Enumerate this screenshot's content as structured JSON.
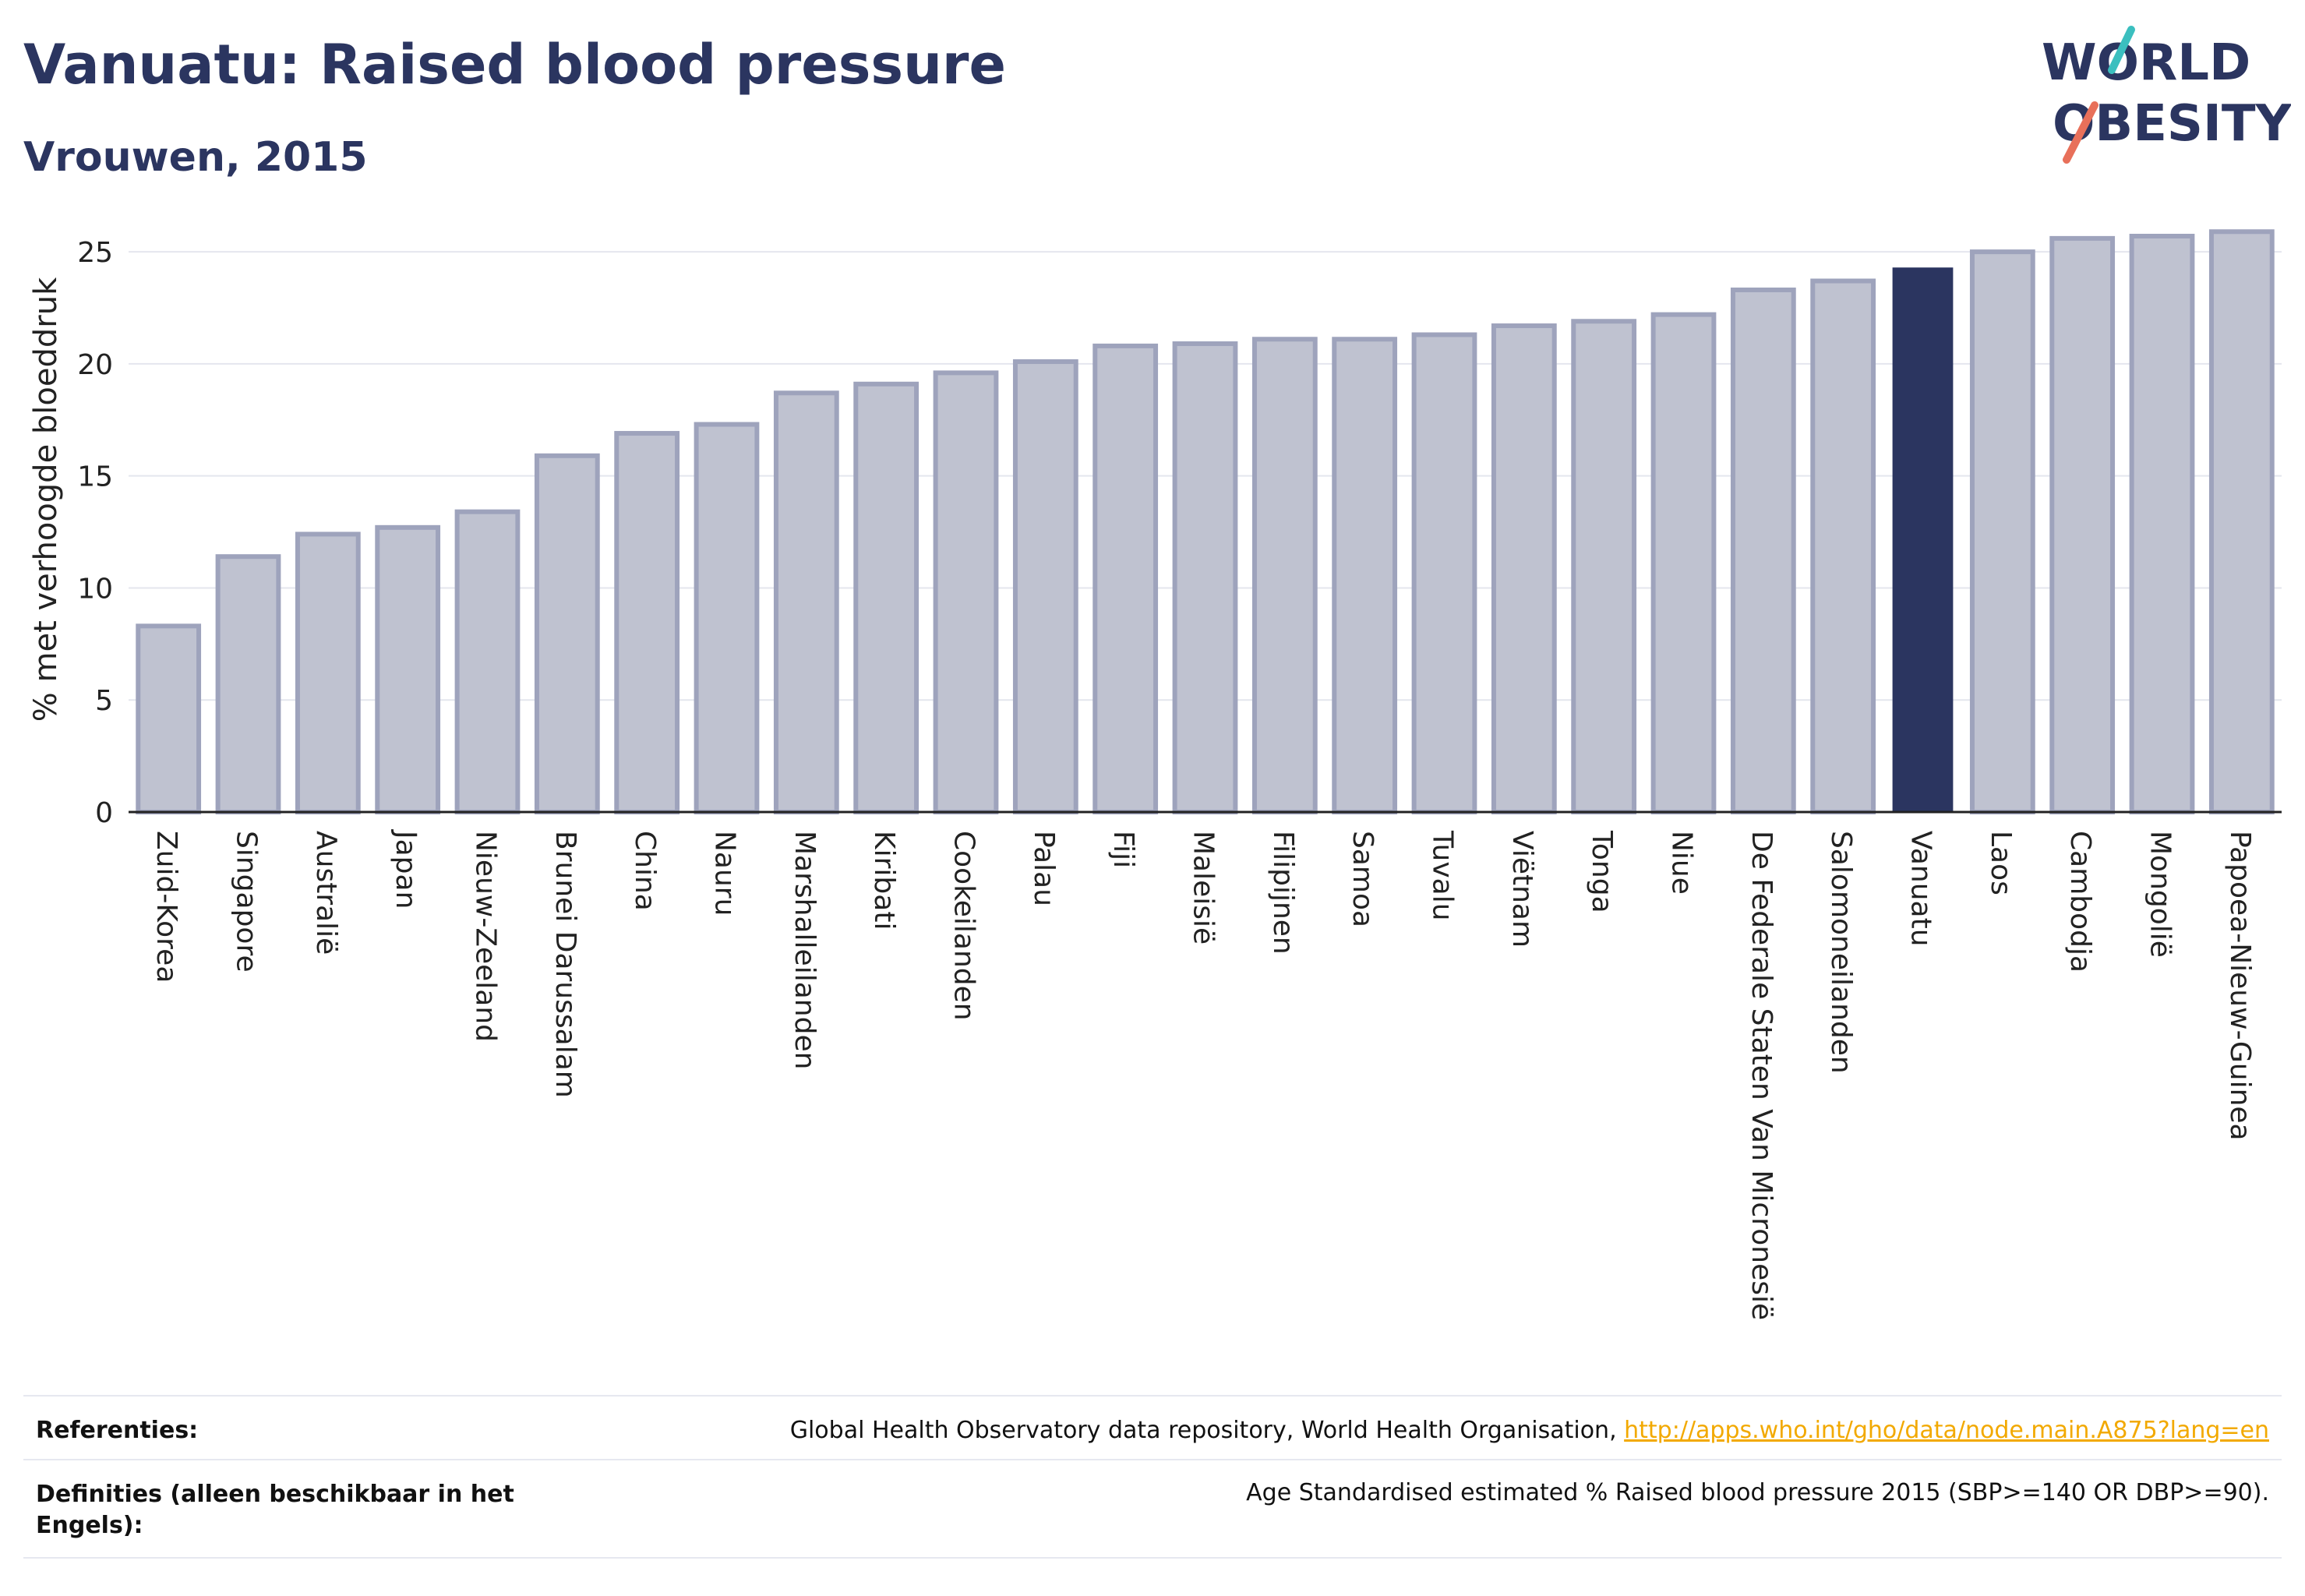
{
  "header": {
    "title": "Vanuatu: Raised blood pressure",
    "subtitle": "Vrouwen, 2015",
    "logo_line1": "WORLD",
    "logo_line2": "OBESITY"
  },
  "chart_data": {
    "type": "bar",
    "ylabel": "% met verhoogde bloeddruk",
    "ylim": [
      0,
      26.5
    ],
    "yticks": [
      0,
      5,
      10,
      15,
      20,
      25
    ],
    "grid": true,
    "highlight": "Vanuatu",
    "categories": [
      "Zuid-Korea",
      "Singapore",
      "Australië",
      "Japan",
      "Nieuw-Zeeland",
      "Brunei Darussalam",
      "China",
      "Nauru",
      "Marshalleilanden",
      "Kiribati",
      "Cookeilanden",
      "Palau",
      "Fiji",
      "Maleisië",
      "Filipijnen",
      "Samoa",
      "Tuvalu",
      "Viëtnam",
      "Tonga",
      "Niue",
      "De Federale Staten Van Micronesië",
      "Salomoneilanden",
      "Vanuatu",
      "Laos",
      "Cambodja",
      "Mongolië",
      "Papoea-Nieuw-Guinea"
    ],
    "values": [
      8.3,
      11.4,
      12.4,
      12.7,
      13.4,
      15.9,
      16.9,
      17.3,
      18.7,
      19.1,
      19.6,
      20.1,
      20.8,
      20.9,
      21.1,
      21.1,
      21.3,
      21.7,
      21.9,
      22.2,
      23.3,
      23.7,
      24.3,
      25.0,
      25.6,
      25.7,
      25.9
    ]
  },
  "colors": {
    "bar": "#bfc2d0",
    "bar_border": "#9ea3bc",
    "highlight": "#2b3560",
    "grid": "#e4e6ee",
    "axis": "#222222",
    "link": "#f2a900"
  },
  "footer": {
    "references_label": "Referenties:",
    "references_text": "Global Health Observatory data repository, World Health Organisation, ",
    "references_link": "http://apps.who.int/gho/data/node.main.A875?lang=en",
    "definitions_label": "Definities (alleen beschikbaar in het Engels):",
    "definitions_text": "Age Standardised estimated % Raised blood pressure 2015 (SBP>=140 OR DBP>=90)."
  }
}
